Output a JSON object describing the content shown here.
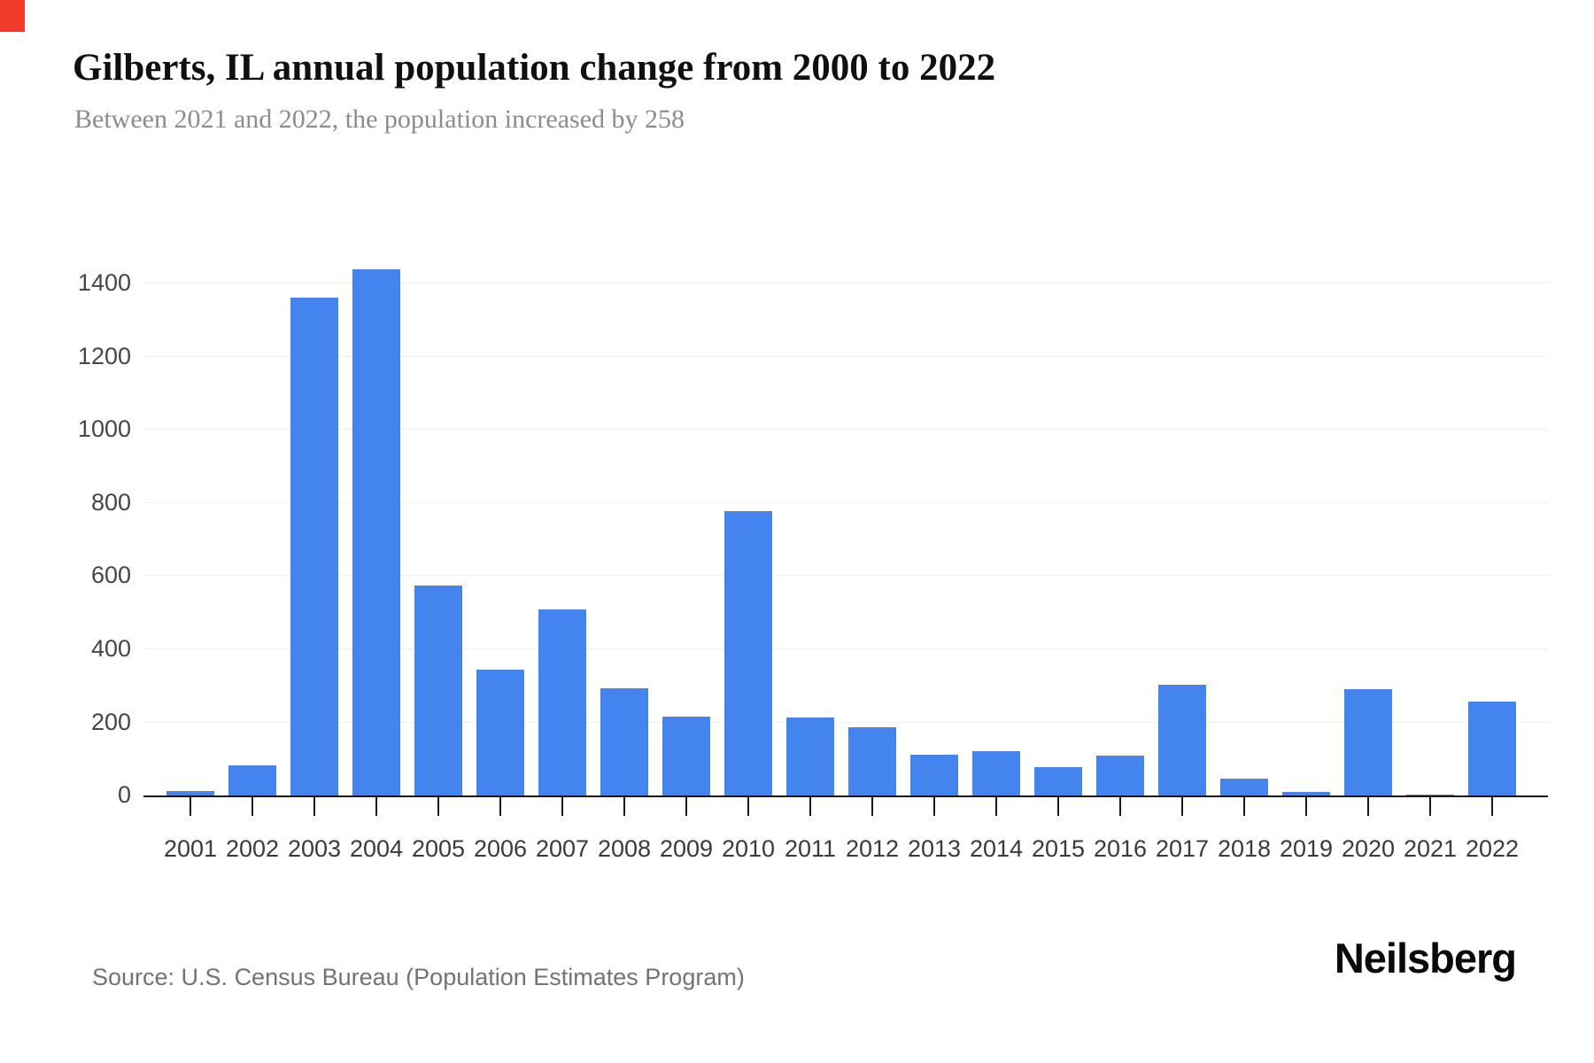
{
  "header": {
    "title": "Gilberts, IL annual population change from 2000 to 2022",
    "subtitle": "Between 2021 and 2022, the population increased by 258"
  },
  "footer": {
    "source": "Source: U.S. Census Bureau (Population Estimates Program)",
    "brand": "Neilsberg"
  },
  "marker": {
    "color": "#EE3B2A"
  },
  "chart_data": {
    "type": "bar",
    "title": "Gilberts, IL annual population change from 2000 to 2022",
    "subtitle": "Between 2021 and 2022, the population increased by 258",
    "categories": [
      "2001",
      "2002",
      "2003",
      "2004",
      "2005",
      "2006",
      "2007",
      "2008",
      "2009",
      "2010",
      "2011",
      "2012",
      "2013",
      "2014",
      "2015",
      "2016",
      "2017",
      "2018",
      "2019",
      "2020",
      "2021",
      "2022"
    ],
    "values": [
      13,
      83,
      1362,
      1440,
      575,
      345,
      510,
      293,
      216,
      777,
      213,
      186,
      112,
      121,
      77,
      108,
      303,
      45,
      10,
      291,
      3,
      258
    ],
    "bar_color": "#4484EF",
    "y_ticks": [
      0,
      200,
      400,
      600,
      800,
      1000,
      1200,
      1400
    ],
    "ylim": [
      0,
      1500
    ],
    "xlabel": "",
    "ylabel": "",
    "grid": "horizontal",
    "legend": "none",
    "highlight_note": "2022 increase of 258 referenced in subtitle"
  }
}
